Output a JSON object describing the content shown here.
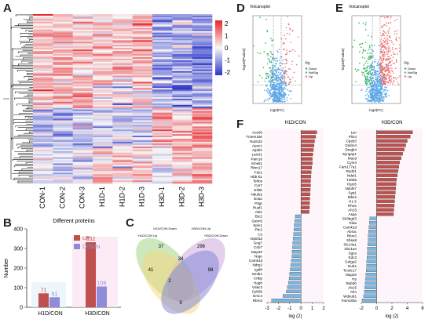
{
  "panels": {
    "A": "A",
    "B": "B",
    "C": "C",
    "D": "D",
    "E": "E",
    "F": "F"
  },
  "heatmap": {
    "samples": [
      "CON-1",
      "CON-2",
      "CON-3",
      "H1D-1",
      "H1D-2",
      "H1D-3",
      "H3D-1",
      "H3D-2",
      "H3D-3"
    ],
    "colorbar_ticks": [
      "2",
      "1",
      "0",
      "-1",
      "-2"
    ],
    "colors": {
      "high": "#e8262c",
      "mid": "#f7f7f7",
      "low": "#2b35c9"
    }
  },
  "volcano_d": {
    "title": "Volcanoplot",
    "xlabel": "log2(FC)",
    "ylabel": "-log10(Pvalue)",
    "legend_title": "Sig",
    "legend": [
      "Down",
      "NotSig",
      "Up"
    ],
    "colors": {
      "down": "#29b34b",
      "notsig": "#5aa6e6",
      "up": "#f07070"
    }
  },
  "volcano_e": {
    "title": "Volcanoplot",
    "xlabel": "log2(FC)",
    "ylabel": "-log10(Pvalue)",
    "legend_title": "Sig",
    "legend": [
      "Down",
      "NotSig",
      "Up"
    ]
  },
  "chart_data": [
    {
      "type": "bar",
      "title": "Different proteins",
      "ylabel": "Number",
      "categories": [
        "H1D/CON",
        "H3D/CON"
      ],
      "series": [
        {
          "name": "UP",
          "values": [
            71,
            332
          ],
          "color": "#c0504d"
        },
        {
          "name": "DOWN",
          "values": [
            51,
            106
          ],
          "color": "#8e8cd8"
        }
      ],
      "ylim": [
        0,
        400
      ],
      "yticks": [
        0,
        100,
        200,
        300,
        400
      ]
    },
    {
      "type": "bar",
      "title": "H1D/CON",
      "xlabel": "log (2)",
      "xlim": [
        -3,
        2
      ],
      "xticks": [
        -3,
        -2,
        -1,
        0,
        1,
        2
      ],
      "categories": [
        "Ace66",
        "Tmem160",
        "Nudcd2",
        "Apoc1",
        "Atp5l1",
        "Lancl1",
        "Pam16",
        "Smek1",
        "Rbm17",
        "Fdx1",
        "Hbb-b1",
        "Tshbs",
        "Car7",
        "Eif2b",
        "Ndufs2",
        "Gnao",
        "Pdgr",
        "Rusf1",
        "Abi2",
        "Btc2",
        "Gstm5",
        "Spin1",
        "Pfn2",
        "Cs",
        "Atp5f1d",
        "Gng7",
        "Cdo7",
        "Mup20",
        "Nrgn",
        "Camk1d",
        "Ndrg2",
        "Igsf8",
        "Smdt1",
        "Crtbp",
        "Hagh",
        "Vdac3",
        "Cyb5b",
        "Emc4",
        "Rbm3"
      ],
      "values": [
        1.4,
        1.3,
        1.2,
        1.15,
        1.1,
        1.05,
        1.0,
        1.0,
        0.95,
        0.9,
        0.88,
        0.85,
        0.85,
        0.82,
        0.8,
        0.78,
        0.76,
        0.75,
        0.72,
        -0.5,
        -0.55,
        -0.6,
        -0.62,
        -0.65,
        -0.7,
        -0.72,
        -0.75,
        -0.78,
        -0.8,
        -0.85,
        -0.9,
        -0.95,
        -1.0,
        -1.05,
        -1.1,
        -1.2,
        -1.3,
        -1.6,
        -2.6
      ],
      "colors": {
        "up": "#c0504d",
        "down": "#7ab6e0"
      }
    },
    {
      "type": "bar",
      "title": "H3D/CON",
      "xlabel": "log (2)",
      "xlim": [
        -2,
        6
      ],
      "xticks": [
        -2,
        0,
        2,
        4,
        6
      ],
      "categories": [
        "Lsn",
        "Plin4",
        "Cpeb3",
        "Gsdm4",
        "Dnajb4",
        "Syngap1",
        "Macd",
        "Cyrs4",
        "Fam177a1",
        "Rad21",
        "Ndel1",
        "Tubb5",
        "Pgm5",
        "Ndufs7",
        "Syp1",
        "Mbs2",
        "H1-5",
        "Rhoe",
        "Ah15",
        "Aspa",
        "Sh3bgrl3",
        "Rida",
        "Camk1d",
        "Abrac",
        "Rbm3",
        "Shsa8",
        "Slc14a1",
        "Sbc1a4",
        "Sgca",
        "Edc3",
        "Golga3",
        "Nub1",
        "Tcndc17",
        "Mup20",
        "Hp",
        "Rab30",
        "Ab15",
        "Afm",
        "Wdsub1",
        "Fam183a"
      ],
      "values": [
        4.7,
        4.4,
        4.0,
        3.8,
        3.6,
        3.4,
        3.2,
        3.0,
        2.9,
        2.8,
        2.7,
        2.6,
        2.55,
        2.5,
        2.45,
        2.4,
        2.35,
        2.3,
        2.25,
        2.2,
        -0.9,
        -0.95,
        -1.0,
        -1.05,
        -1.1,
        -1.1,
        -1.15,
        -1.2,
        -1.2,
        -1.25,
        -1.3,
        -1.3,
        -1.35,
        -1.4,
        -1.45,
        -1.5,
        -1.55,
        -1.6,
        -1.7,
        -1.9
      ],
      "colors": {
        "up": "#c0504d",
        "down": "#7ab6e0"
      }
    }
  ],
  "venn": {
    "sets": [
      "H1D/CON up",
      "H1D/CON Down",
      "H3D/CON Up",
      "H3D/CON Down"
    ],
    "labels": [
      "H1D/CON Up",
      "H1D/CON Down",
      "H3D/CON Up",
      "H3D/CON Down"
    ],
    "counts": {
      "a": "37",
      "b": "296",
      "c": "41",
      "d": "34",
      "e": "98",
      "f": "2",
      "g": "9"
    },
    "colors": [
      "#c9a0dc",
      "#f5d67a",
      "#9bd27a",
      "#7b83d6"
    ]
  }
}
